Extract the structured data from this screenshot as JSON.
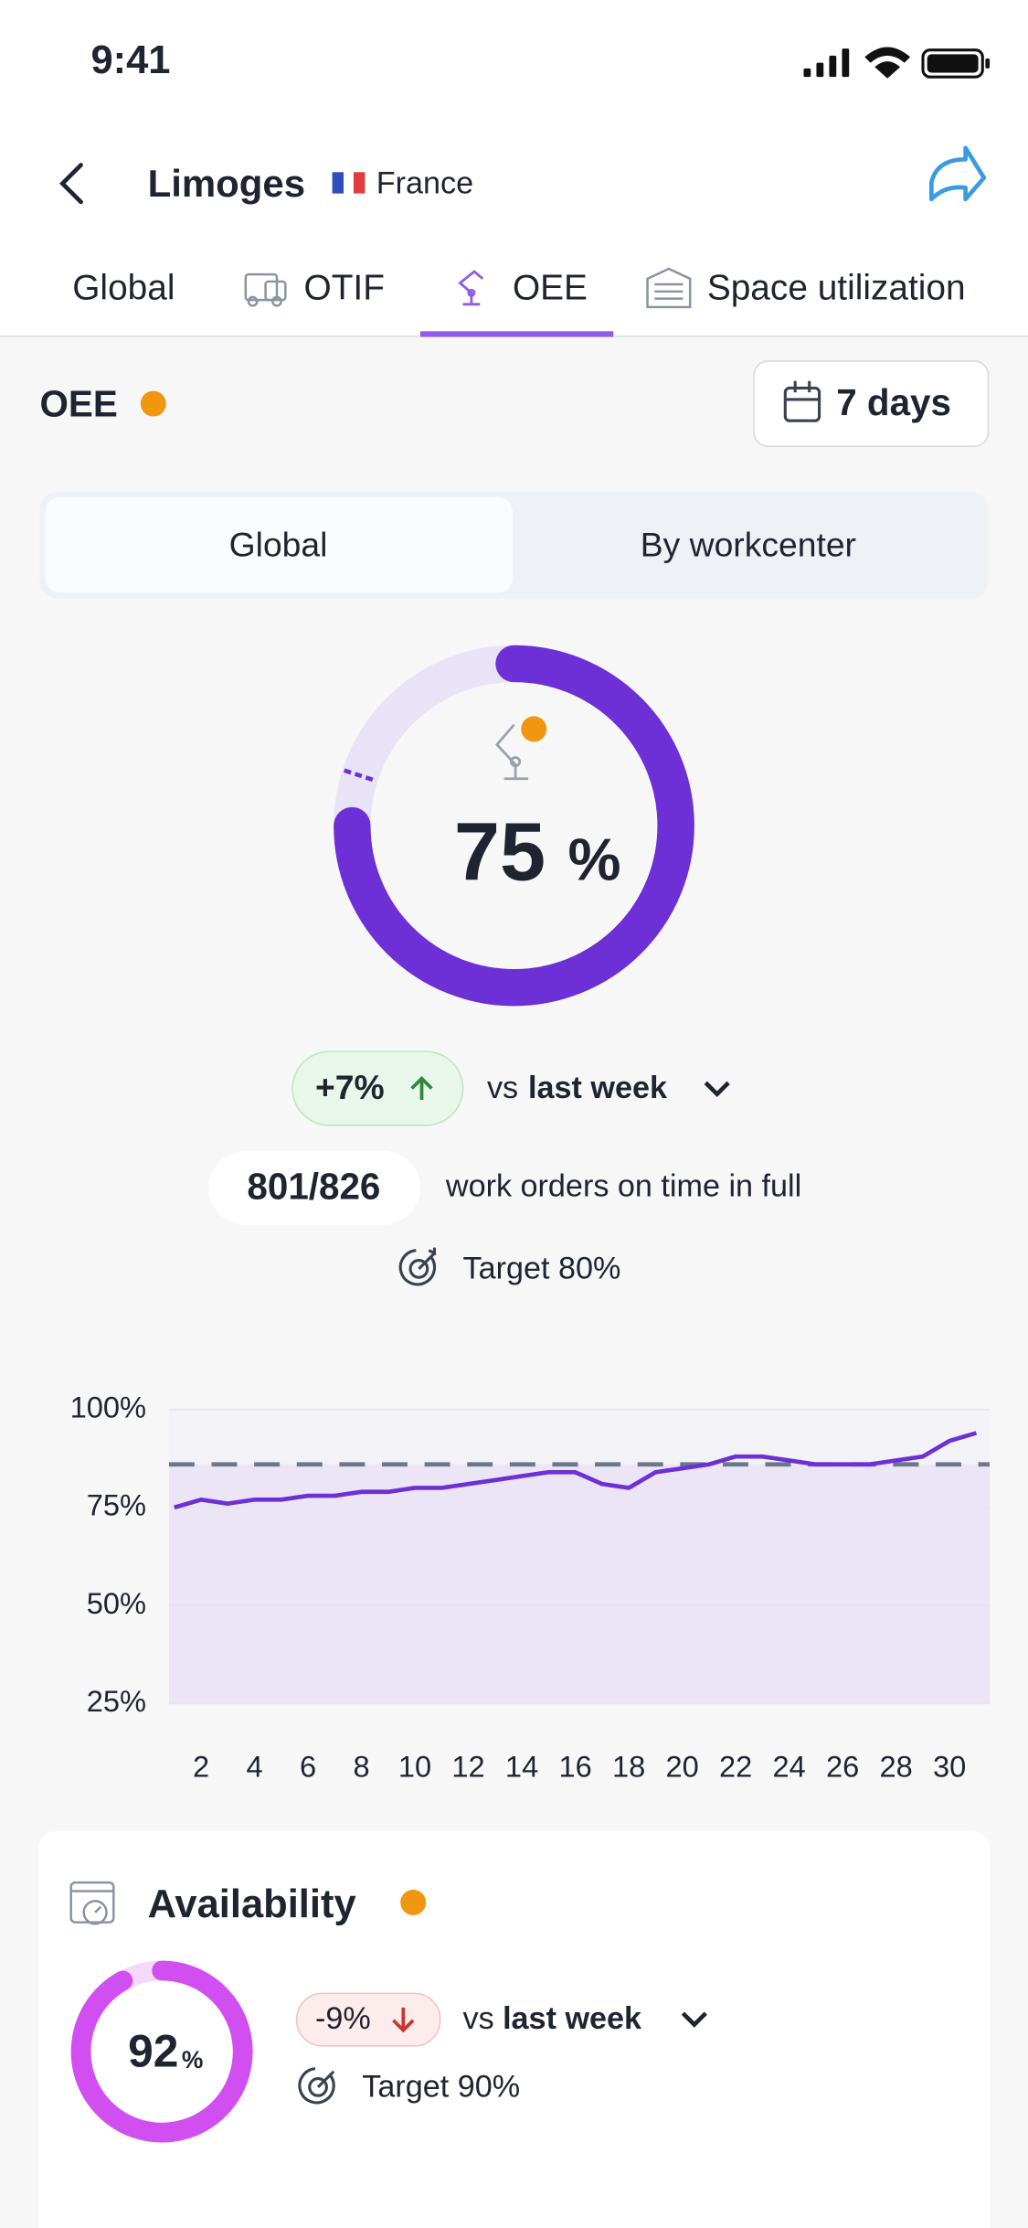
{
  "status_bar": {
    "time": "9:41"
  },
  "header": {
    "title": "Limoges",
    "country": "France"
  },
  "tabs": [
    "Global",
    "OTIF",
    "OEE",
    "Space utilization"
  ],
  "section": {
    "title": "OEE",
    "period": "7 days"
  },
  "segmented": [
    "Global",
    "By workcenter"
  ],
  "gauge": {
    "value": 75,
    "unit": "%",
    "target": 80,
    "change": "+7%",
    "vs": "vs",
    "compare": "last week",
    "orders": "801/826",
    "orders_text": "work orders on time in full",
    "target_label": "Target 80%"
  },
  "oee_chart": {
    "type": "line",
    "x": [
      1,
      2,
      3,
      4,
      5,
      6,
      7,
      8,
      9,
      10,
      11,
      12,
      13,
      14,
      15,
      16,
      17,
      18,
      19,
      20,
      21,
      22,
      23,
      24,
      25,
      26,
      27,
      28,
      29,
      30,
      31
    ],
    "values": [
      75,
      77,
      76,
      77,
      77,
      78,
      78,
      79,
      79,
      80,
      80,
      81,
      82,
      83,
      84,
      84,
      81,
      80,
      84,
      85,
      86,
      88,
      88,
      87,
      86,
      86,
      86,
      87,
      88,
      92,
      94
    ],
    "color": "#6d2fd6",
    "target_line": 86,
    "xlim": [
      0.8,
      31.5
    ],
    "ylim": [
      25,
      100
    ],
    "yticks": [
      {
        "value": 100,
        "label": "100%"
      },
      {
        "value": 75,
        "label": "75%"
      },
      {
        "value": 50,
        "label": "50%"
      },
      {
        "value": 25,
        "label": "25%"
      }
    ],
    "xticks": [
      2,
      4,
      6,
      8,
      10,
      12,
      14,
      16,
      18,
      20,
      22,
      24,
      26,
      28,
      30
    ],
    "grid": true
  },
  "availability": {
    "title": "Availability",
    "value": 92,
    "unit": "%",
    "target": 90,
    "change": "-9%",
    "vs": "vs",
    "compare": "last week",
    "target_label": "Target 90%"
  }
}
